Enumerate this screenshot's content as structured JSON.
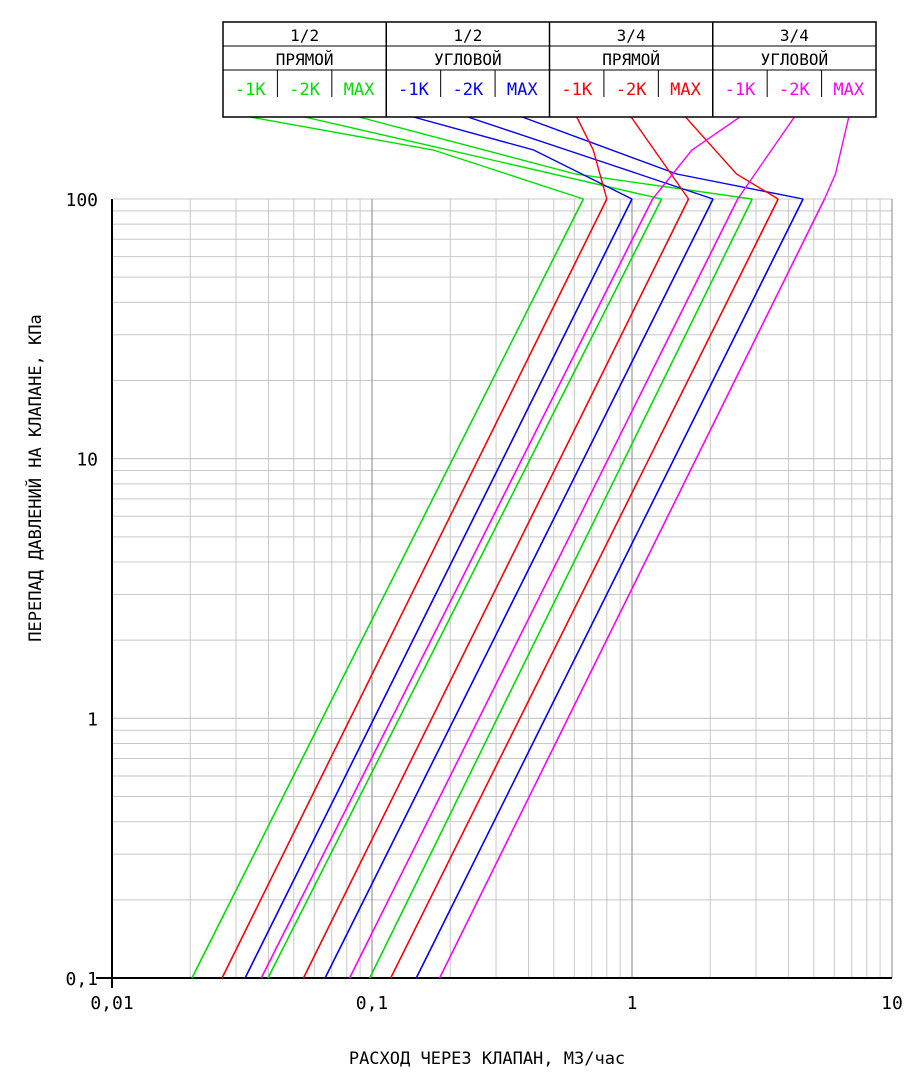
{
  "chart_data": {
    "type": "line",
    "xlabel": "РАСХОД ЧЕРЕЗ КЛАПАН, М3/час",
    "ylabel": "ПЕРЕПАД ДАВЛЕНИЙ НА КЛАПАНЕ, КПа",
    "x_scale": "log",
    "y_scale": "log",
    "xlim": [
      0.01,
      10
    ],
    "ylim": [
      0.1,
      100
    ],
    "x_ticks": [
      {
        "value": 0.01,
        "label": "0,01"
      },
      {
        "value": 0.1,
        "label": "0,1"
      },
      {
        "value": 1,
        "label": "1"
      },
      {
        "value": 10,
        "label": "10"
      }
    ],
    "y_ticks": [
      {
        "value": 0.1,
        "label": "0,1"
      },
      {
        "value": 1,
        "label": "1"
      },
      {
        "value": 10,
        "label": "10"
      },
      {
        "value": 100,
        "label": "100"
      }
    ],
    "grid": true,
    "legend_groups": [
      {
        "size": "1/2",
        "kind": "ПРЯМОЙ"
      },
      {
        "size": "1/2",
        "kind": "УГЛОВОЙ"
      },
      {
        "size": "3/4",
        "kind": "ПРЯМОЙ"
      },
      {
        "size": "3/4",
        "kind": "УГЛОВОЙ"
      }
    ],
    "series": [
      {
        "name": "-1K",
        "group": 0,
        "color": "#00e000",
        "x": [
          0.0203,
          0.65
        ],
        "y": [
          0.1,
          100
        ]
      },
      {
        "name": "-2K",
        "group": 0,
        "color": "#00e000",
        "x": [
          0.0398,
          1.3
        ],
        "y": [
          0.1,
          100
        ]
      },
      {
        "name": "MAX",
        "group": 0,
        "color": "#00e000",
        "x": [
          0.098,
          2.9
        ],
        "y": [
          0.1,
          100
        ]
      },
      {
        "name": "-1K",
        "group": 1,
        "color": "#0000ff",
        "x": [
          0.0325,
          1.0
        ],
        "y": [
          0.1,
          100
        ]
      },
      {
        "name": "-2K",
        "group": 1,
        "color": "#0000ff",
        "x": [
          0.066,
          2.05
        ],
        "y": [
          0.1,
          100
        ]
      },
      {
        "name": "MAX",
        "group": 1,
        "color": "#0000ff",
        "x": [
          0.148,
          4.55
        ],
        "y": [
          0.1,
          100
        ]
      },
      {
        "name": "-1K",
        "group": 2,
        "color": "#ff0000",
        "x": [
          0.0265,
          0.8
        ],
        "y": [
          0.1,
          100
        ]
      },
      {
        "name": "-2K",
        "group": 2,
        "color": "#ff0000",
        "x": [
          0.0545,
          1.65
        ],
        "y": [
          0.1,
          100
        ]
      },
      {
        "name": "MAX",
        "group": 2,
        "color": "#ff0000",
        "x": [
          0.118,
          3.65
        ],
        "y": [
          0.1,
          100
        ]
      },
      {
        "name": "-1K",
        "group": 3,
        "color": "#ff00ff",
        "x": [
          0.0375,
          1.2
        ],
        "y": [
          0.1,
          100
        ]
      },
      {
        "name": "-2K",
        "group": 3,
        "color": "#ff00ff",
        "x": [
          0.082,
          2.55
        ],
        "y": [
          0.1,
          100
        ]
      },
      {
        "name": "MAX",
        "group": 3,
        "color": "#ff00ff",
        "x": [
          0.182,
          5.5
        ],
        "y": [
          0.1,
          100
        ]
      }
    ]
  }
}
